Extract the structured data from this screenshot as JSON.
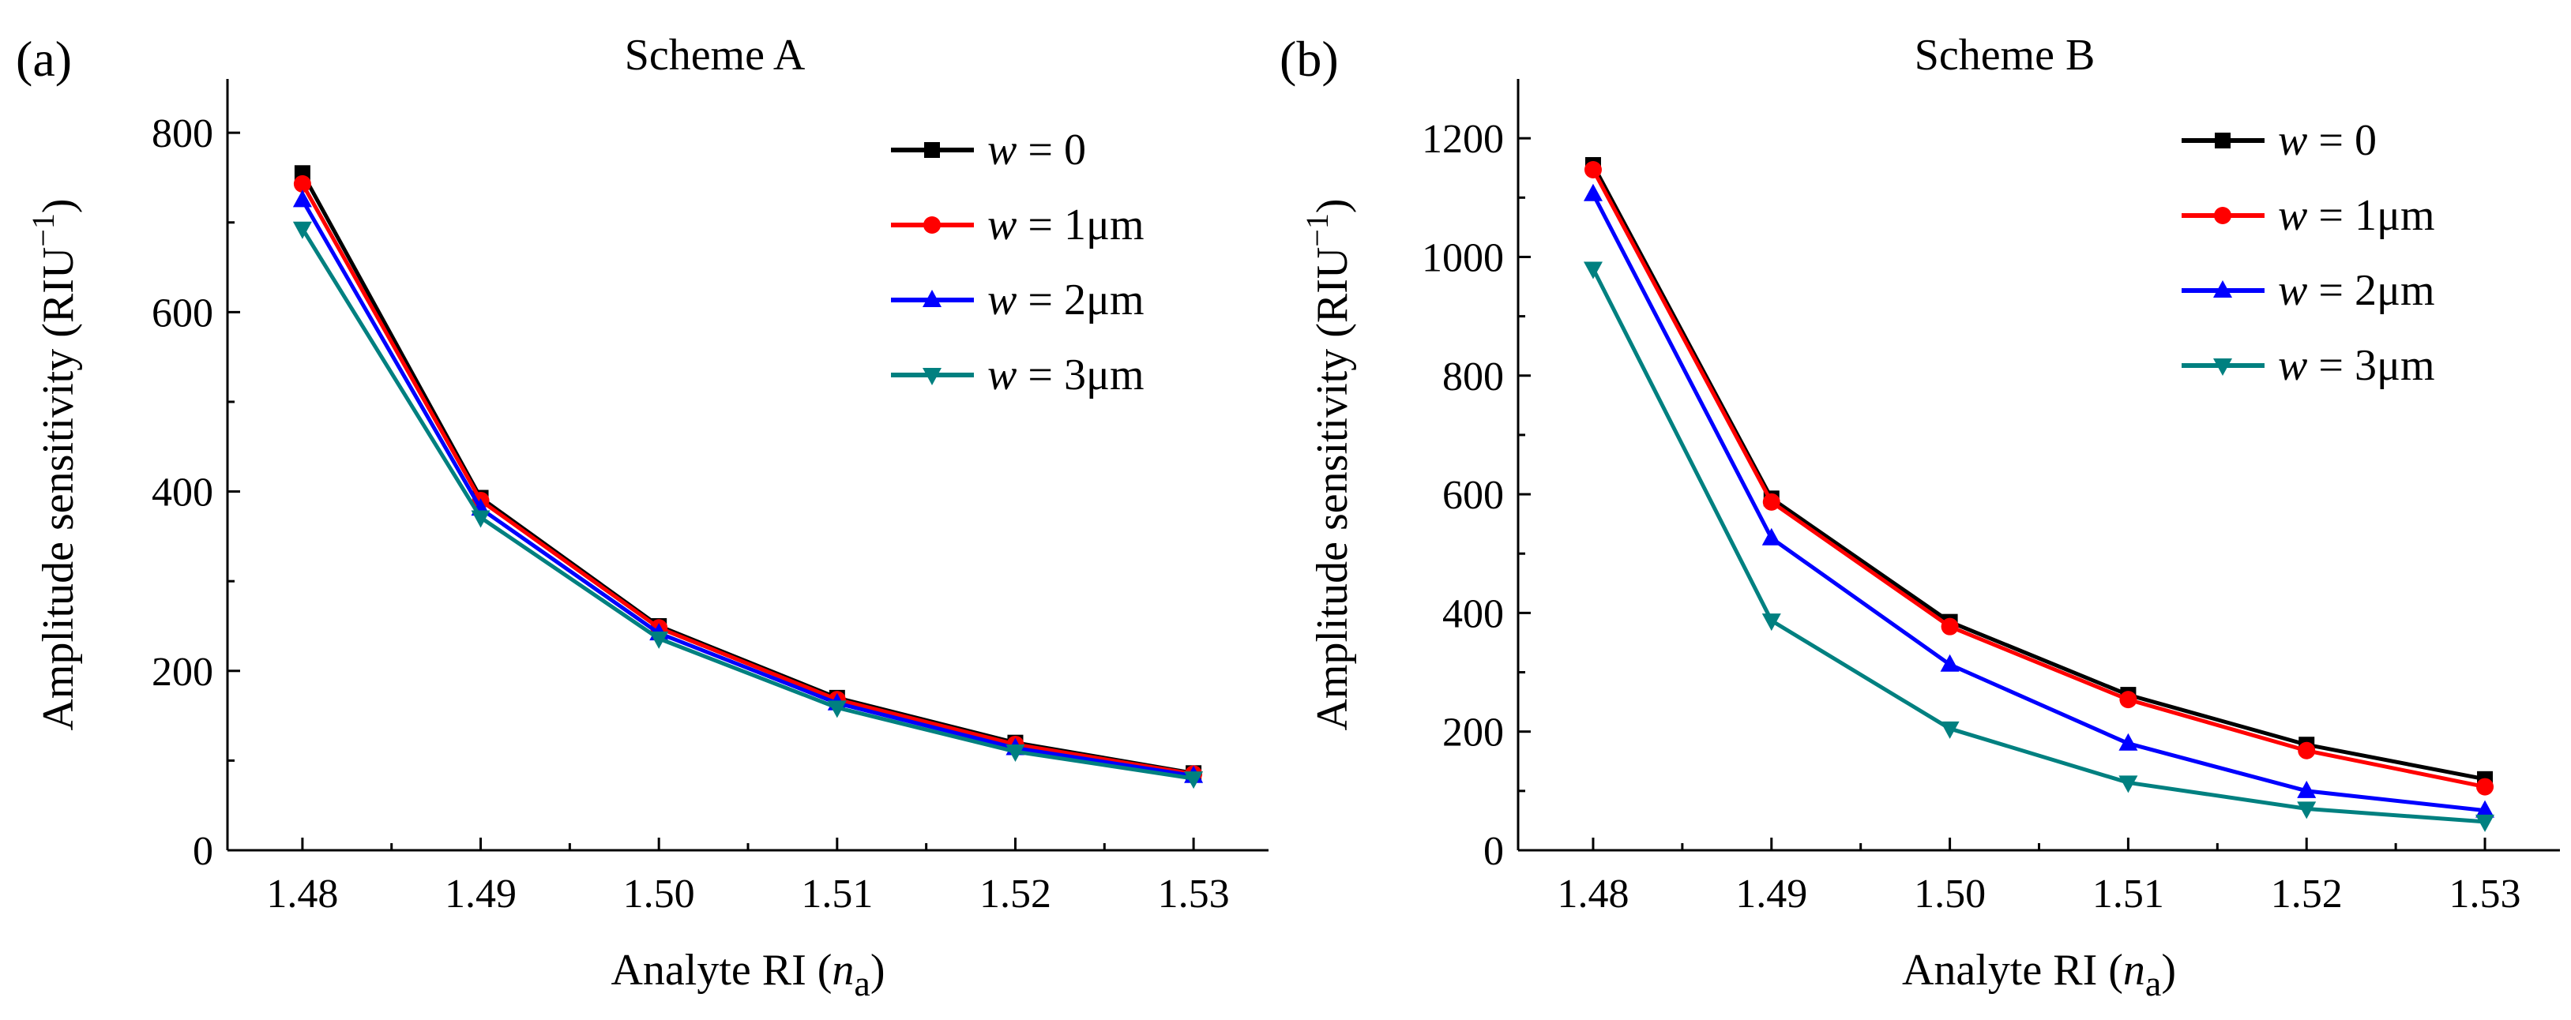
{
  "chart_data": [
    {
      "type": "line",
      "panel_label": "(a)",
      "title": "Scheme A",
      "xlabel": "Analyte RI",
      "xlabel_symbol": "n",
      "xlabel_subscript": "a",
      "ylabel": "Amplitude sensitivity (RIU",
      "ylabel_exp": "−1",
      "ylabel_close": ")",
      "categories": [
        "1.48",
        "1.49",
        "1.50",
        "1.51",
        "1.52",
        "1.53"
      ],
      "ylim": [
        0,
        860
      ],
      "yticks": [
        0,
        200,
        400,
        600,
        800
      ],
      "legend_position": "top-right",
      "series": [
        {
          "name": "w = 0",
          "var": "w",
          "label_rest": " = 0",
          "color": "#000000",
          "marker": "square",
          "values": [
            755,
            393,
            250,
            170,
            120,
            86
          ]
        },
        {
          "name": "w = 1μm",
          "var": "w",
          "label_rest": " = 1μm",
          "color": "#ff0000",
          "marker": "circle",
          "values": [
            743,
            390,
            248,
            168,
            118,
            85
          ]
        },
        {
          "name": "w = 2μm",
          "var": "w",
          "label_rest": " = 2μm",
          "color": "#0000ff",
          "marker": "triangle-up",
          "values": [
            725,
            381,
            242,
            164,
            114,
            83
          ]
        },
        {
          "name": "w = 3μm",
          "var": "w",
          "label_rest": " = 3μm",
          "color": "#008080",
          "marker": "triangle-down",
          "values": [
            693,
            371,
            236,
            159,
            110,
            80
          ]
        }
      ]
    },
    {
      "type": "line",
      "panel_label": "(b)",
      "title": "Scheme B",
      "xlabel": "Analyte RI",
      "xlabel_symbol": "n",
      "xlabel_subscript": "a",
      "ylabel": "Amplitude sensitivity (RIU",
      "ylabel_exp": "−1",
      "ylabel_close": ")",
      "categories": [
        "1.48",
        "1.49",
        "1.50",
        "1.51",
        "1.52",
        "1.53"
      ],
      "ylim": [
        0,
        1300
      ],
      "yticks": [
        0,
        200,
        400,
        600,
        800,
        1000,
        1200
      ],
      "legend_position": "top-right",
      "series": [
        {
          "name": "w = 0",
          "var": "w",
          "label_rest": " = 0",
          "color": "#000000",
          "marker": "square",
          "values": [
            1155,
            593,
            385,
            262,
            178,
            120
          ]
        },
        {
          "name": "w = 1μm",
          "var": "w",
          "label_rest": " = 1μm",
          "color": "#ff0000",
          "marker": "circle",
          "values": [
            1147,
            587,
            377,
            254,
            168,
            107
          ]
        },
        {
          "name": "w = 2μm",
          "var": "w",
          "label_rest": " = 2μm",
          "color": "#0000ff",
          "marker": "triangle-up",
          "values": [
            1106,
            526,
            313,
            180,
            100,
            67
          ]
        },
        {
          "name": "w = 3μm",
          "var": "w",
          "label_rest": " = 3μm",
          "color": "#008080",
          "marker": "triangle-down",
          "values": [
            980,
            387,
            205,
            114,
            70,
            48
          ]
        }
      ]
    }
  ]
}
